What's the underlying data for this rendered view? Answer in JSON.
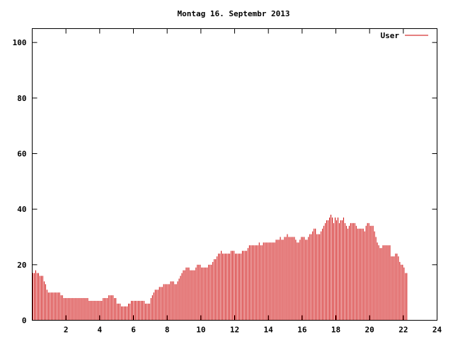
{
  "chart_data": {
    "type": "bar",
    "title": "Montag 16. Septembr 2013",
    "xlabel": "",
    "ylabel": "",
    "xlim": [
      0,
      24
    ],
    "ylim": [
      0,
      105
    ],
    "x_ticks": [
      2,
      4,
      6,
      8,
      10,
      12,
      14,
      16,
      18,
      20,
      22,
      24
    ],
    "y_ticks": [
      0,
      20,
      40,
      60,
      80,
      100
    ],
    "grid": false,
    "legend_position": "top-right",
    "series": [
      {
        "name": "User",
        "color": "#cc0000",
        "sample_interval_hours": 0.08333,
        "values": [
          17,
          17,
          18,
          17,
          17,
          16,
          16,
          16,
          14,
          13,
          11,
          10,
          10,
          10,
          10,
          10,
          10,
          10,
          10,
          10,
          9,
          9,
          8,
          8,
          8,
          8,
          8,
          8,
          8,
          8,
          8,
          8,
          8,
          8,
          8,
          8,
          8,
          8,
          8,
          8,
          7,
          7,
          7,
          7,
          7,
          7,
          7,
          7,
          7,
          7,
          8,
          8,
          8,
          8,
          9,
          9,
          9,
          9,
          8,
          8,
          6,
          6,
          6,
          5,
          5,
          5,
          5,
          5,
          6,
          6,
          7,
          7,
          7,
          7,
          7,
          7,
          7,
          7,
          7,
          7,
          6,
          6,
          6,
          6,
          8,
          9,
          10,
          11,
          11,
          11,
          12,
          12,
          12,
          13,
          13,
          13,
          13,
          13,
          14,
          14,
          14,
          13,
          13,
          14,
          15,
          16,
          17,
          18,
          18,
          19,
          19,
          19,
          18,
          18,
          18,
          18,
          19,
          20,
          20,
          20,
          19,
          19,
          19,
          19,
          19,
          20,
          20,
          20,
          21,
          22,
          22,
          23,
          24,
          24,
          25,
          24,
          24,
          24,
          24,
          24,
          24,
          25,
          25,
          25,
          24,
          24,
          24,
          24,
          24,
          25,
          25,
          25,
          25,
          26,
          27,
          27,
          27,
          27,
          27,
          27,
          27,
          28,
          27,
          27,
          28,
          28,
          28,
          28,
          28,
          28,
          28,
          28,
          28,
          29,
          29,
          29,
          30,
          29,
          29,
          30,
          30,
          31,
          30,
          30,
          30,
          30,
          30,
          29,
          28,
          28,
          29,
          30,
          30,
          30,
          29,
          29,
          30,
          31,
          31,
          32,
          33,
          33,
          31,
          31,
          31,
          32,
          33,
          34,
          35,
          36,
          36,
          37,
          38,
          37,
          35,
          37,
          36,
          37,
          35,
          36,
          36,
          37,
          35,
          34,
          33,
          34,
          35,
          35,
          35,
          35,
          34,
          33,
          33,
          33,
          33,
          33,
          32,
          34,
          35,
          35,
          34,
          34,
          34,
          32,
          30,
          28,
          27,
          26,
          26,
          27,
          27,
          27,
          27,
          27,
          27,
          23,
          23,
          23,
          24,
          24,
          23,
          21,
          20,
          20,
          19,
          17,
          17
        ]
      }
    ]
  }
}
